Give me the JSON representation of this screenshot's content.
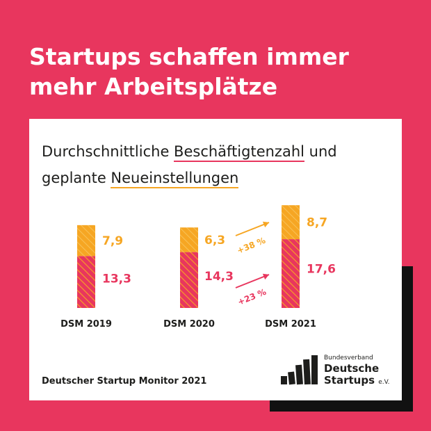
{
  "headline": {
    "line1": "Startups schaffen immer",
    "line2": "mehr Arbeitsplätze"
  },
  "subtitle": {
    "part1": "Durchschnittliche ",
    "underline1": "Beschäftigtenzahl",
    "part2": " und",
    "part3": "geplante ",
    "underline2": "Neueinstellungen"
  },
  "chart_data": {
    "type": "bar",
    "stacked": true,
    "categories": [
      "DSM 2019",
      "DSM 2020",
      "DSM 2021"
    ],
    "series": [
      {
        "values": [
          13.3,
          14.3,
          17.6
        ],
        "labels": [
          "13,3",
          "14,3",
          "17,6"
        ],
        "color": "#e8365e"
      },
      {
        "values": [
          7.9,
          6.3,
          8.7
        ],
        "labels": [
          "7,9",
          "6,3",
          "8,7"
        ],
        "color": "#f6a623"
      }
    ],
    "annotations": [
      {
        "text": "+38 %",
        "color": "#f6a623"
      },
      {
        "text": "+23 %",
        "color": "#e8365e"
      }
    ]
  },
  "source": "Deutscher Startup Monitor 2021",
  "logo": {
    "line1": "Bundesverband",
    "line2": "Deutsche",
    "line3": "Startups",
    "suffix": "e.V."
  },
  "colors": {
    "background": "#e8365e",
    "orange": "#f6a623",
    "text": "#1d1d1b"
  }
}
